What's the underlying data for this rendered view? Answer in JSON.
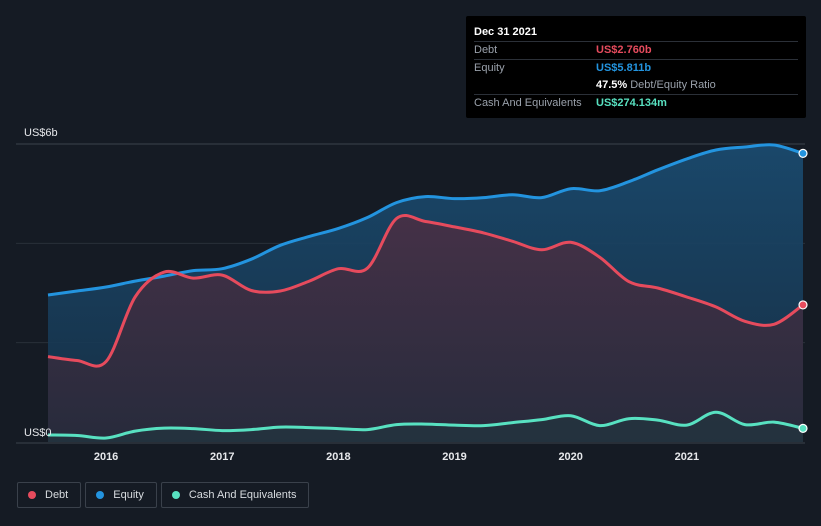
{
  "chart_data": {
    "type": "area",
    "y_axis_top_label": "US$6b",
    "y_axis_bottom_label": "US$0",
    "ylim": [
      0,
      6
    ],
    "xlim": [
      2015.5,
      2022.0
    ],
    "x_tick_labels": [
      "2016",
      "2017",
      "2018",
      "2019",
      "2020",
      "2021"
    ],
    "x_tick_values": [
      2016,
      2017,
      2018,
      2019,
      2020,
      2021
    ],
    "series": [
      {
        "name": "Equity",
        "color": "#2394df",
        "points": [
          [
            2015.5,
            2.96
          ],
          [
            2015.75,
            3.04
          ],
          [
            2016.0,
            3.12
          ],
          [
            2016.25,
            3.24
          ],
          [
            2016.5,
            3.34
          ],
          [
            2016.75,
            3.45
          ],
          [
            2017.0,
            3.49
          ],
          [
            2017.25,
            3.68
          ],
          [
            2017.5,
            3.96
          ],
          [
            2017.75,
            4.14
          ],
          [
            2018.0,
            4.3
          ],
          [
            2018.25,
            4.52
          ],
          [
            2018.5,
            4.82
          ],
          [
            2018.75,
            4.94
          ],
          [
            2019.0,
            4.9
          ],
          [
            2019.25,
            4.92
          ],
          [
            2019.5,
            4.98
          ],
          [
            2019.75,
            4.92
          ],
          [
            2020.0,
            5.1
          ],
          [
            2020.25,
            5.06
          ],
          [
            2020.5,
            5.24
          ],
          [
            2020.75,
            5.48
          ],
          [
            2021.0,
            5.7
          ],
          [
            2021.25,
            5.88
          ],
          [
            2021.5,
            5.94
          ],
          [
            2021.75,
            5.98
          ],
          [
            2022.0,
            5.811
          ]
        ]
      },
      {
        "name": "Debt",
        "color": "#e64b5d",
        "points": [
          [
            2015.5,
            1.72
          ],
          [
            2015.75,
            1.64
          ],
          [
            2016.0,
            1.62
          ],
          [
            2016.25,
            2.92
          ],
          [
            2016.5,
            3.42
          ],
          [
            2016.75,
            3.3
          ],
          [
            2017.0,
            3.36
          ],
          [
            2017.25,
            3.05
          ],
          [
            2017.5,
            3.04
          ],
          [
            2017.75,
            3.24
          ],
          [
            2018.0,
            3.49
          ],
          [
            2018.25,
            3.5
          ],
          [
            2018.5,
            4.5
          ],
          [
            2018.75,
            4.44
          ],
          [
            2019.0,
            4.33
          ],
          [
            2019.25,
            4.21
          ],
          [
            2019.5,
            4.04
          ],
          [
            2019.75,
            3.87
          ],
          [
            2020.0,
            4.02
          ],
          [
            2020.25,
            3.72
          ],
          [
            2020.5,
            3.23
          ],
          [
            2020.75,
            3.1
          ],
          [
            2021.0,
            2.92
          ],
          [
            2021.25,
            2.72
          ],
          [
            2021.5,
            2.43
          ],
          [
            2021.75,
            2.37
          ],
          [
            2022.0,
            2.76
          ]
        ]
      },
      {
        "name": "Cash And Equivalents",
        "color": "#58e1c1",
        "points": [
          [
            2015.5,
            0.14
          ],
          [
            2015.75,
            0.13
          ],
          [
            2016.0,
            0.08
          ],
          [
            2016.25,
            0.22
          ],
          [
            2016.5,
            0.28
          ],
          [
            2016.75,
            0.27
          ],
          [
            2017.0,
            0.23
          ],
          [
            2017.25,
            0.25
          ],
          [
            2017.5,
            0.3
          ],
          [
            2017.75,
            0.29
          ],
          [
            2018.0,
            0.27
          ],
          [
            2018.25,
            0.25
          ],
          [
            2018.5,
            0.35
          ],
          [
            2018.75,
            0.36
          ],
          [
            2019.0,
            0.34
          ],
          [
            2019.25,
            0.33
          ],
          [
            2019.5,
            0.39
          ],
          [
            2019.75,
            0.45
          ],
          [
            2020.0,
            0.53
          ],
          [
            2020.25,
            0.33
          ],
          [
            2020.5,
            0.47
          ],
          [
            2020.75,
            0.44
          ],
          [
            2021.0,
            0.34
          ],
          [
            2021.25,
            0.6
          ],
          [
            2021.5,
            0.35
          ],
          [
            2021.75,
            0.4
          ],
          [
            2022.0,
            0.274
          ]
        ]
      }
    ]
  },
  "tooltip": {
    "date": "Dec 31 2021",
    "rows": [
      {
        "label": "Debt",
        "value": "US$2.760b",
        "color": "#e64b5d"
      },
      {
        "label": "Equity",
        "value": "US$5.811b",
        "color": "#2394df"
      }
    ],
    "ratio_value": "47.5%",
    "ratio_text": "Debt/Equity Ratio",
    "cash_label": "Cash And Equivalents",
    "cash_value": "US$274.134m",
    "cash_color": "#58e1c1"
  },
  "legend": [
    {
      "label": "Debt",
      "color": "#e64b5d"
    },
    {
      "label": "Equity",
      "color": "#2394df"
    },
    {
      "label": "Cash And Equivalents",
      "color": "#58e1c1"
    }
  ]
}
